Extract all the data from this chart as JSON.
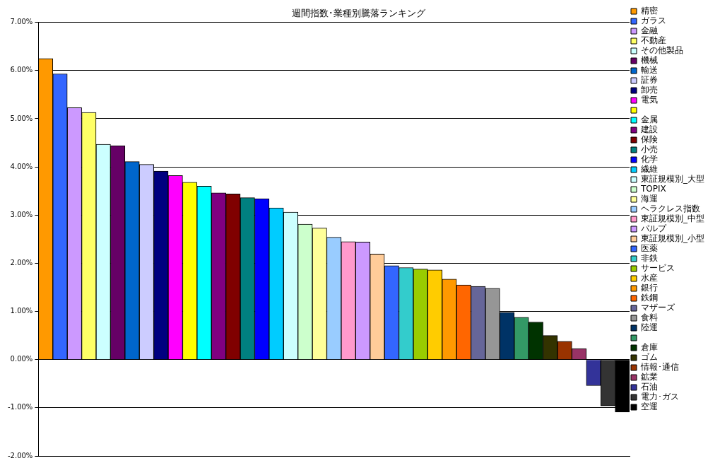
{
  "chart_data": {
    "type": "bar",
    "title": "週間指数･業種別騰落ランキング",
    "categories": [
      null
    ],
    "series": [
      {
        "name": "精密",
        "color": "#ff9900",
        "values": [
          6.25
        ]
      },
      {
        "name": "ガラス",
        "color": "#3366ff",
        "values": [
          5.93
        ]
      },
      {
        "name": "金融",
        "color": "#cc99ff",
        "values": [
          5.23
        ]
      },
      {
        "name": "不動産",
        "color": "#ffff66",
        "values": [
          5.13
        ]
      },
      {
        "name": "その他製品",
        "color": "#ccffff",
        "values": [
          4.47
        ]
      },
      {
        "name": "機械",
        "color": "#660066",
        "values": [
          4.44
        ]
      },
      {
        "name": "輸送",
        "color": "#0066cc",
        "values": [
          4.11
        ]
      },
      {
        "name": "証券",
        "color": "#ccccff",
        "values": [
          4.05
        ]
      },
      {
        "name": "卸売",
        "color": "#000080",
        "values": [
          3.91
        ]
      },
      {
        "name": "電気",
        "color": "#ff00ff",
        "values": [
          3.82
        ]
      },
      {
        "color": "#ffff00",
        "values": [
          3.68
        ]
      },
      {
        "name": "金属",
        "color": "#00ffff",
        "values": [
          3.6
        ]
      },
      {
        "name": "建設",
        "color": "#800080",
        "values": [
          3.46
        ]
      },
      {
        "name": "保険",
        "color": "#800000",
        "values": [
          3.44
        ]
      },
      {
        "name": "小売",
        "color": "#008080",
        "values": [
          3.36
        ]
      },
      {
        "name": "化学",
        "color": "#0000ff",
        "values": [
          3.34
        ]
      },
      {
        "name": "繊維",
        "color": "#00ccff",
        "values": [
          3.15
        ]
      },
      {
        "name": "東証規模別_大型",
        "color": "#ccffff",
        "values": [
          3.06
        ]
      },
      {
        "name": "TOPIX",
        "color": "#ccffcc",
        "values": [
          2.81
        ]
      },
      {
        "name": "海運",
        "color": "#ffff99",
        "values": [
          2.73
        ]
      },
      {
        "name": "ヘラクレス指数",
        "color": "#99ccff",
        "values": [
          2.54
        ]
      },
      {
        "name": "東証規模別_中型",
        "color": "#ff99cc",
        "values": [
          2.45
        ]
      },
      {
        "name": "パルプ",
        "color": "#cc99ff",
        "values": [
          2.44
        ]
      },
      {
        "name": "東証規模別_小型",
        "color": "#ffcc99",
        "values": [
          2.19
        ]
      },
      {
        "name": "医薬",
        "color": "#3366ff",
        "values": [
          1.95
        ]
      },
      {
        "name": "非鉄",
        "color": "#33cccc",
        "values": [
          1.91
        ]
      },
      {
        "name": "サービス",
        "color": "#99cc00",
        "values": [
          1.88
        ]
      },
      {
        "name": "水産",
        "color": "#ffcc00",
        "values": [
          1.86
        ]
      },
      {
        "name": "銀行",
        "color": "#ff9900",
        "values": [
          1.67
        ]
      },
      {
        "name": "鉄鋼",
        "color": "#ff6600",
        "values": [
          1.55
        ]
      },
      {
        "name": "マザーズ",
        "color": "#666699",
        "values": [
          1.52
        ]
      },
      {
        "name": "食料",
        "color": "#969696",
        "values": [
          1.48
        ]
      },
      {
        "name": "陸運",
        "color": "#003366",
        "values": [
          0.98
        ]
      },
      {
        "color": "#339966",
        "values": [
          0.88
        ]
      },
      {
        "name": "倉庫",
        "color": "#003300",
        "values": [
          0.78
        ]
      },
      {
        "name": "ゴム",
        "color": "#333300",
        "values": [
          0.5
        ]
      },
      {
        "name": "情報･通信",
        "color": "#993300",
        "values": [
          0.38
        ]
      },
      {
        "name": "鉱業",
        "color": "#993366",
        "values": [
          0.23
        ]
      },
      {
        "name": "石油",
        "color": "#333399",
        "values": [
          -0.54
        ]
      },
      {
        "name": "電力･ガス",
        "color": "#333333",
        "values": [
          -0.96
        ]
      },
      {
        "name": "空運",
        "color": "#000000",
        "values": [
          -1.09
        ]
      }
    ],
    "ylim": [
      -2,
      7
    ],
    "yticks": [
      {
        "value": -2,
        "label": "-2.00%"
      },
      {
        "value": -1,
        "label": "-1.00%"
      },
      {
        "value": 0,
        "label": "0.00%"
      },
      {
        "value": 1,
        "label": "1.00%"
      },
      {
        "value": 2,
        "label": "2.00%"
      },
      {
        "value": 3,
        "label": "3.00%"
      },
      {
        "value": 4,
        "label": "4.00%"
      },
      {
        "value": 5,
        "label": "5.00%"
      },
      {
        "value": 6,
        "label": "6.00%"
      },
      {
        "value": 7,
        "label": "7.00%"
      }
    ],
    "grid": "y",
    "legend": "right",
    "tick_labels": "y"
  }
}
